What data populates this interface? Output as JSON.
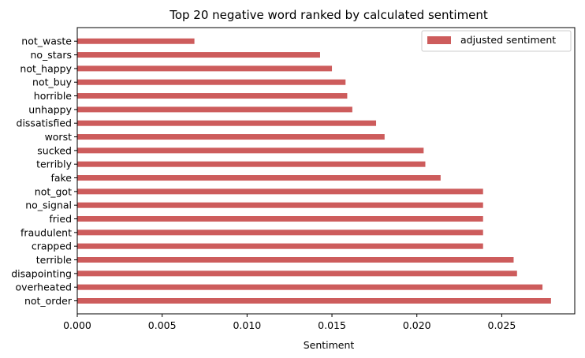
{
  "chart_data": {
    "type": "bar",
    "orientation": "horizontal",
    "title": "Top 20 negative word ranked by calculated sentiment",
    "xlabel": "Sentiment",
    "ylabel": "",
    "xlim": [
      0,
      0.0293
    ],
    "xticks": [
      "0.000",
      "0.005",
      "0.010",
      "0.015",
      "0.020",
      "0.025"
    ],
    "grid": false,
    "legend_position": "top-right",
    "categories": [
      "not_order",
      "overheated",
      "disapointing",
      "terrible",
      "crapped",
      "fraudulent",
      "fried",
      "no_signal",
      "not_got",
      "fake",
      "terribly",
      "sucked",
      "worst",
      "dissatisfied",
      "unhappy",
      "horrible",
      "not_buy",
      "not_happy",
      "no_stars",
      "not_waste"
    ],
    "series": [
      {
        "name": "adjusted sentiment",
        "color": "#cd5c5c",
        "values": [
          0.0279,
          0.0274,
          0.0259,
          0.0257,
          0.0239,
          0.0239,
          0.0239,
          0.0239,
          0.0239,
          0.0214,
          0.0205,
          0.0204,
          0.0181,
          0.0176,
          0.0162,
          0.0159,
          0.0158,
          0.015,
          0.0143,
          0.0069
        ]
      }
    ]
  }
}
